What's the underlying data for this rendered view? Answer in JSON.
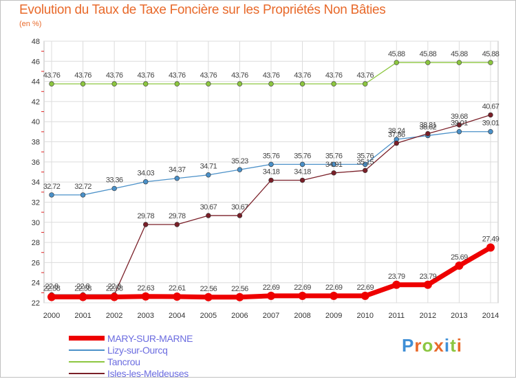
{
  "title": "Evolution du Taux de Taxe Foncière sur les Propriétés Non Bâties",
  "unit_label": "(en %)",
  "logo": {
    "text": "Proxiti",
    "letters": [
      {
        "ch": "P",
        "color": "#3f8fd6"
      },
      {
        "ch": "r",
        "color": "#e8692a"
      },
      {
        "ch": "o",
        "color": "#8cc641"
      },
      {
        "ch": "x",
        "color": "#e8692a"
      },
      {
        "ch": "i",
        "color": "#3f8fd6"
      },
      {
        "ch": "t",
        "color": "#8cc641"
      },
      {
        "ch": "i",
        "color": "#e8692a"
      }
    ]
  },
  "chart_data": {
    "type": "line",
    "title": "Evolution du Taux de Taxe Foncière sur les Propriétés Non Bâties",
    "ylabel": "(en %)",
    "x": [
      "2000",
      "2001",
      "2002",
      "2003",
      "2004",
      "2005",
      "2006",
      "2007",
      "2008",
      "2009",
      "2010",
      "2011",
      "2012",
      "2013",
      "2014"
    ],
    "ylim": [
      22,
      48
    ],
    "yticks": [
      22,
      24,
      26,
      28,
      30,
      32,
      34,
      36,
      38,
      40,
      42,
      44,
      46,
      48
    ],
    "grid": true,
    "legend_position": "bottom-left",
    "series": [
      {
        "name": "MARY-SUR-MARNE",
        "color": "#ee0000",
        "values": [
          22.58,
          22.58,
          22.58,
          22.63,
          22.61,
          22.56,
          22.56,
          22.69,
          22.69,
          22.69,
          22.69,
          23.79,
          23.79,
          25.69,
          27.49
        ],
        "labels": [
          "22.58",
          "22.58",
          "22.58",
          "22.63",
          "22.61",
          "22.56",
          "22.56",
          "22.69",
          "22.69",
          "22.69",
          "22.69",
          "23.79",
          "23.79",
          "25.69",
          "27.49"
        ]
      },
      {
        "name": "Lizy-sur-Ourcq",
        "color": "#4a90c8",
        "values": [
          32.72,
          32.72,
          33.36,
          34.03,
          34.37,
          34.71,
          35.23,
          35.76,
          35.76,
          35.76,
          35.76,
          38.24,
          38.62,
          39.01,
          39.01
        ],
        "labels": [
          "32.72",
          "32.72",
          "33.36",
          "34.03",
          "34.37",
          "34.71",
          "35.23",
          "35.76",
          "35.76",
          "35.76",
          "35.76",
          "38.24",
          "38.62",
          "39.01",
          "39.01"
        ]
      },
      {
        "name": "Tancrou",
        "color": "#8cc63f",
        "values": [
          43.76,
          43.76,
          43.76,
          43.76,
          43.76,
          43.76,
          43.76,
          43.76,
          43.76,
          43.76,
          43.76,
          45.88,
          45.88,
          45.88,
          45.88
        ],
        "labels": [
          "43.76",
          "43.76",
          "43.76",
          "43.76",
          "43.76",
          "43.76",
          "43.76",
          "43.76",
          "43.76",
          "43.76",
          "43.76",
          "45.88",
          "45.88",
          "45.88",
          "45.88"
        ]
      },
      {
        "name": "Isles-les-Meldeuses",
        "color": "#7a1f28",
        "values": [
          22.8,
          22.8,
          22.8,
          29.78,
          29.78,
          30.67,
          30.67,
          34.18,
          34.18,
          34.91,
          35.15,
          37.86,
          38.81,
          39.68,
          40.67
        ],
        "labels": [
          "22.8",
          "22.8",
          "22.8",
          "29.78",
          "29.78",
          "30.67",
          "30.67",
          "34.18",
          "34.18",
          "34.91",
          "35.15",
          "37.86",
          "38.81",
          "39.68",
          "40.67"
        ]
      }
    ]
  }
}
